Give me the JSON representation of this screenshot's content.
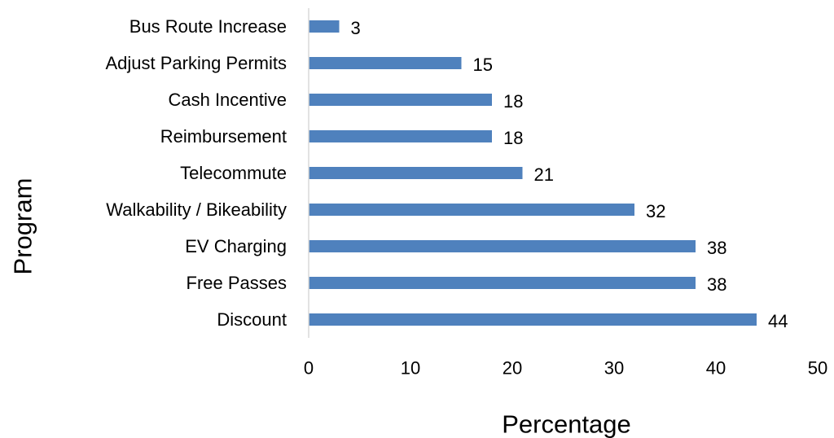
{
  "chart_data": {
    "type": "bar",
    "orientation": "horizontal",
    "categories": [
      "Bus Route Increase",
      "Adjust Parking Permits",
      "Cash Incentive",
      "Reimbursement",
      "Telecommute",
      "Walkability / Bikeability",
      "EV Charging",
      "Free Passes ",
      "Discount"
    ],
    "values": [
      3,
      15,
      18,
      18,
      21,
      32,
      38,
      38,
      44
    ],
    "data_labels": [
      "3",
      "15",
      "18",
      "18",
      "21",
      "32",
      "38",
      "38",
      "44"
    ],
    "title": "",
    "xlabel": "Percentage",
    "ylabel": "Program",
    "xlim": [
      0,
      50
    ],
    "xticks": [
      "0",
      "10",
      "20",
      "30",
      "40",
      "50"
    ],
    "grid": false,
    "legend": "none",
    "colors": {
      "bar": "#4f81bd",
      "axis": "#d9d9d9",
      "text": "#000000"
    }
  }
}
